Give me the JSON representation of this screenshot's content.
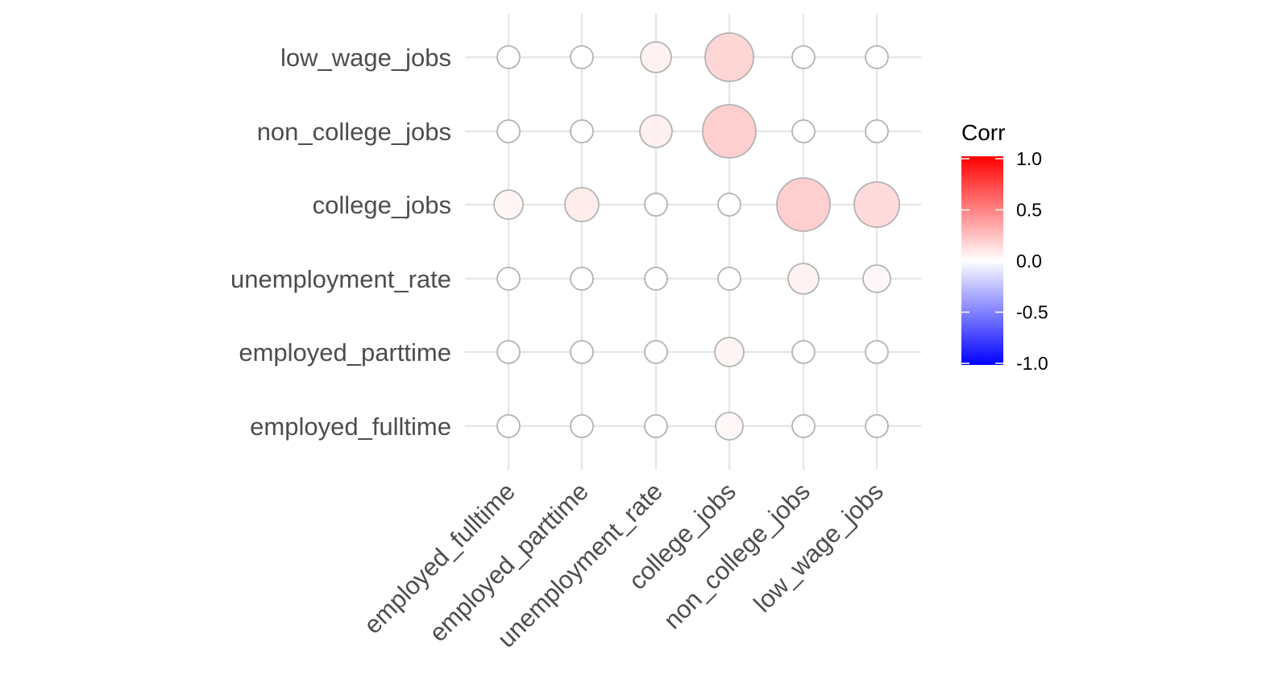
{
  "chart_data": {
    "type": "correlation-bubble-matrix",
    "x_labels": [
      "employed_fulltime",
      "employed_parttime",
      "unemployment_rate",
      "college_jobs",
      "non_college_jobs",
      "low_wage_jobs"
    ],
    "y_labels": [
      "employed_fulltime",
      "employed_parttime",
      "unemployment_rate",
      "college_jobs",
      "non_college_jobs",
      "low_wage_jobs"
    ],
    "cells": [
      {
        "x": "employed_fulltime",
        "y": "low_wage_jobs",
        "value": 0.0
      },
      {
        "x": "employed_parttime",
        "y": "low_wage_jobs",
        "value": 0.0
      },
      {
        "x": "unemployment_rate",
        "y": "low_wage_jobs",
        "value": 0.05
      },
      {
        "x": "college_jobs",
        "y": "low_wage_jobs",
        "value": 0.16
      },
      {
        "x": "non_college_jobs",
        "y": "low_wage_jobs",
        "value": 0.0
      },
      {
        "x": "low_wage_jobs",
        "y": "low_wage_jobs",
        "value": 0.0
      },
      {
        "x": "employed_fulltime",
        "y": "non_college_jobs",
        "value": 0.0
      },
      {
        "x": "employed_parttime",
        "y": "non_college_jobs",
        "value": 0.0
      },
      {
        "x": "unemployment_rate",
        "y": "non_college_jobs",
        "value": 0.06
      },
      {
        "x": "college_jobs",
        "y": "non_college_jobs",
        "value": 0.19
      },
      {
        "x": "non_college_jobs",
        "y": "non_college_jobs",
        "value": 0.0
      },
      {
        "x": "low_wage_jobs",
        "y": "non_college_jobs",
        "value": 0.0
      },
      {
        "x": "employed_fulltime",
        "y": "college_jobs",
        "value": 0.04
      },
      {
        "x": "employed_parttime",
        "y": "college_jobs",
        "value": 0.07
      },
      {
        "x": "unemployment_rate",
        "y": "college_jobs",
        "value": 0.0
      },
      {
        "x": "college_jobs",
        "y": "college_jobs",
        "value": 0.0
      },
      {
        "x": "non_college_jobs",
        "y": "college_jobs",
        "value": 0.19
      },
      {
        "x": "low_wage_jobs",
        "y": "college_jobs",
        "value": 0.14
      },
      {
        "x": "employed_fulltime",
        "y": "unemployment_rate",
        "value": 0.0
      },
      {
        "x": "employed_parttime",
        "y": "unemployment_rate",
        "value": 0.0
      },
      {
        "x": "unemployment_rate",
        "y": "unemployment_rate",
        "value": 0.0
      },
      {
        "x": "college_jobs",
        "y": "unemployment_rate",
        "value": 0.0
      },
      {
        "x": "non_college_jobs",
        "y": "unemployment_rate",
        "value": 0.05
      },
      {
        "x": "low_wage_jobs",
        "y": "unemployment_rate",
        "value": 0.03
      },
      {
        "x": "employed_fulltime",
        "y": "employed_parttime",
        "value": 0.0
      },
      {
        "x": "employed_parttime",
        "y": "employed_parttime",
        "value": 0.0
      },
      {
        "x": "unemployment_rate",
        "y": "employed_parttime",
        "value": 0.0
      },
      {
        "x": "college_jobs",
        "y": "employed_parttime",
        "value": 0.04
      },
      {
        "x": "non_college_jobs",
        "y": "employed_parttime",
        "value": 0.0
      },
      {
        "x": "low_wage_jobs",
        "y": "employed_parttime",
        "value": 0.0
      },
      {
        "x": "employed_fulltime",
        "y": "employed_fulltime",
        "value": 0.0
      },
      {
        "x": "employed_parttime",
        "y": "employed_fulltime",
        "value": 0.0
      },
      {
        "x": "unemployment_rate",
        "y": "employed_fulltime",
        "value": 0.0
      },
      {
        "x": "college_jobs",
        "y": "employed_fulltime",
        "value": 0.03
      },
      {
        "x": "non_college_jobs",
        "y": "employed_fulltime",
        "value": 0.0
      },
      {
        "x": "low_wage_jobs",
        "y": "employed_fulltime",
        "value": 0.0
      }
    ],
    "legend": {
      "title": "Corr",
      "ticks": [
        "1.0",
        "0.5",
        "0.0",
        "-0.5",
        "-1.0"
      ],
      "range": [
        -1,
        1
      ],
      "colors": {
        "low": "#0000ff",
        "mid": "#ffffff",
        "high": "#ff0000"
      },
      "placement": "right"
    },
    "grid": true
  }
}
